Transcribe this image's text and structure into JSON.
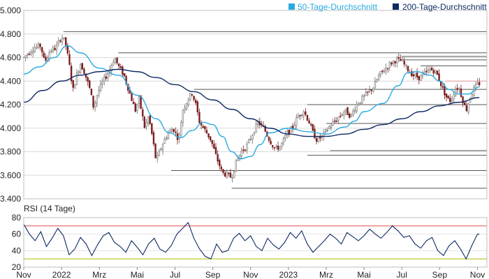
{
  "chart_data": [
    {
      "type": "candlestick",
      "legend": [
        {
          "name": "50-Tage-Durchschnitt",
          "color": "#29aae2"
        },
        {
          "name": "200-Tage-Durchschnitt",
          "color": "#0d2a63"
        }
      ],
      "ylim": [
        3400,
        5000
      ],
      "yticks": [
        "3.400",
        "3.600",
        "3.800",
        "4.000",
        "4.200",
        "4.400",
        "4.600",
        "4.800",
        "5.000"
      ],
      "ytick_values": [
        3400,
        3600,
        3800,
        4000,
        4200,
        4400,
        4600,
        4800,
        5000
      ],
      "xlim": [
        0,
        24.5
      ],
      "xticks": [
        {
          "label": "Nov",
          "month": 0
        },
        {
          "label": "2022",
          "month": 2
        },
        {
          "label": "Mrz",
          "month": 4
        },
        {
          "label": "Mai",
          "month": 6
        },
        {
          "label": "Jul",
          "month": 8
        },
        {
          "label": "Sep",
          "month": 10
        },
        {
          "label": "Nov",
          "month": 12
        },
        {
          "label": "2023",
          "month": 14
        },
        {
          "label": "Mrz",
          "month": 16
        },
        {
          "label": "Mai",
          "month": 18
        },
        {
          "label": "Jul",
          "month": 20
        },
        {
          "label": "Sep",
          "month": 22
        },
        {
          "label": "Nov",
          "month": 24
        }
      ],
      "price_path": [
        [
          0,
          4600
        ],
        [
          0.5,
          4680
        ],
        [
          0.9,
          4700
        ],
        [
          1.1,
          4560
        ],
        [
          1.4,
          4660
        ],
        [
          1.7,
          4680
        ],
        [
          2.0,
          4780
        ],
        [
          2.2,
          4730
        ],
        [
          2.4,
          4550
        ],
        [
          2.6,
          4320
        ],
        [
          2.8,
          4450
        ],
        [
          3.0,
          4550
        ],
        [
          3.2,
          4480
        ],
        [
          3.5,
          4330
        ],
        [
          3.7,
          4170
        ],
        [
          3.9,
          4300
        ],
        [
          4.2,
          4400
        ],
        [
          4.5,
          4480
        ],
        [
          4.8,
          4600
        ],
        [
          5.0,
          4530
        ],
        [
          5.3,
          4450
        ],
        [
          5.6,
          4300
        ],
        [
          5.9,
          4150
        ],
        [
          6.1,
          4250
        ],
        [
          6.4,
          4000
        ],
        [
          6.6,
          4100
        ],
        [
          6.8,
          3930
        ],
        [
          7.0,
          3720
        ],
        [
          7.3,
          3850
        ],
        [
          7.6,
          3950
        ],
        [
          7.9,
          4000
        ],
        [
          8.2,
          3900
        ],
        [
          8.4,
          4150
        ],
        [
          8.7,
          4250
        ],
        [
          8.9,
          4300
        ],
        [
          9.1,
          4200
        ],
        [
          9.3,
          4050
        ],
        [
          9.6,
          3980
        ],
        [
          9.9,
          3900
        ],
        [
          10.2,
          3750
        ],
        [
          10.5,
          3620
        ],
        [
          10.8,
          3600
        ],
        [
          11.0,
          3580
        ],
        [
          11.2,
          3700
        ],
        [
          11.5,
          3800
        ],
        [
          11.8,
          3850
        ],
        [
          12.1,
          3950
        ],
        [
          12.4,
          4050
        ],
        [
          12.7,
          4000
        ],
        [
          13.0,
          3900
        ],
        [
          13.3,
          3820
        ],
        [
          13.6,
          3850
        ],
        [
          13.9,
          3950
        ],
        [
          14.2,
          4000
        ],
        [
          14.5,
          4100
        ],
        [
          14.8,
          4150
        ],
        [
          15.1,
          4050
        ],
        [
          15.3,
          3960
        ],
        [
          15.5,
          3900
        ],
        [
          15.8,
          3930
        ],
        [
          16.1,
          4000
        ],
        [
          16.4,
          4050
        ],
        [
          16.7,
          4100
        ],
        [
          17.0,
          4150
        ],
        [
          17.3,
          4100
        ],
        [
          17.6,
          4200
        ],
        [
          17.9,
          4250
        ],
        [
          18.2,
          4300
        ],
        [
          18.5,
          4350
        ],
        [
          18.8,
          4450
        ],
        [
          19.1,
          4500
        ],
        [
          19.4,
          4550
        ],
        [
          19.7,
          4580
        ],
        [
          20.0,
          4570
        ],
        [
          20.3,
          4500
        ],
        [
          20.6,
          4450
        ],
        [
          20.9,
          4430
        ],
        [
          21.2,
          4460
        ],
        [
          21.5,
          4500
        ],
        [
          21.8,
          4480
        ],
        [
          22.0,
          4400
        ],
        [
          22.2,
          4320
        ],
        [
          22.4,
          4250
        ],
        [
          22.6,
          4230
        ],
        [
          22.8,
          4330
        ],
        [
          23.0,
          4350
        ],
        [
          23.2,
          4250
        ],
        [
          23.4,
          4150
        ],
        [
          23.6,
          4260
        ],
        [
          23.8,
          4330
        ],
        [
          24.0,
          4370
        ],
        [
          24.1,
          4380
        ]
      ],
      "series": [
        {
          "name": "50-Tage-Durchschnitt",
          "color": "#29aae2",
          "x": [
            0,
            0.8,
            1.6,
            2.3,
            3.0,
            4.0,
            5.0,
            6.0,
            7.0,
            7.7,
            8.3,
            8.9,
            9.5,
            10.0,
            10.5,
            11.0,
            11.5,
            12.0,
            12.5,
            13.0,
            14.0,
            15.0,
            16.0,
            17.0,
            17.5,
            18.0,
            19.0,
            19.8,
            20.3,
            20.8,
            21.5,
            22.0,
            22.5,
            23.0,
            23.5,
            24.1
          ],
          "values": [
            4460,
            4520,
            4600,
            4700,
            4640,
            4510,
            4450,
            4280,
            4080,
            3960,
            3920,
            3980,
            4050,
            4030,
            3930,
            3800,
            3740,
            3760,
            3860,
            3960,
            4000,
            3970,
            3950,
            4010,
            4060,
            4140,
            4210,
            4360,
            4470,
            4480,
            4450,
            4400,
            4330,
            4290,
            4290,
            4350
          ]
        },
        {
          "name": "200-Tage-Durchschnitt",
          "color": "#0d2a63",
          "x": [
            0,
            1.0,
            2.0,
            3.0,
            4.0,
            5.0,
            6.0,
            7.0,
            8.0,
            9.0,
            10.0,
            11.0,
            12.0,
            13.0,
            14.0,
            15.0,
            16.0,
            17.0,
            18.0,
            19.0,
            20.0,
            21.0,
            22.0,
            23.0,
            24.1
          ],
          "values": [
            4220,
            4320,
            4400,
            4450,
            4480,
            4500,
            4480,
            4430,
            4370,
            4310,
            4240,
            4160,
            4080,
            4000,
            3950,
            3930,
            3930,
            3950,
            3990,
            4030,
            4080,
            4140,
            4190,
            4220,
            4260
          ]
        }
      ],
      "support_resistance_levels": [
        4820,
        4640,
        4610,
        4580,
        4530,
        4400,
        4330,
        4200,
        4040,
        3810,
        3770,
        3640,
        3490
      ]
    },
    {
      "type": "line",
      "title": "RSI (14 Tage)",
      "ylim": [
        20,
        80
      ],
      "yticks": [
        "20",
        "40",
        "60",
        "80"
      ],
      "ytick_values": [
        20,
        40,
        60,
        80
      ],
      "reference_lines": [
        {
          "value": 70,
          "color": "#e06060"
        },
        {
          "value": 30,
          "color": "#b5c21f"
        }
      ],
      "series": [
        {
          "name": "RSI",
          "color": "#0d2a63",
          "x": [
            0,
            0.3,
            0.6,
            0.9,
            1.2,
            1.5,
            1.8,
            2.1,
            2.4,
            2.7,
            3.0,
            3.3,
            3.6,
            3.9,
            4.2,
            4.5,
            4.8,
            5.1,
            5.4,
            5.7,
            6.0,
            6.3,
            6.6,
            6.9,
            7.2,
            7.5,
            7.8,
            8.1,
            8.4,
            8.7,
            9.0,
            9.3,
            9.6,
            9.9,
            10.2,
            10.5,
            10.8,
            11.1,
            11.4,
            11.7,
            12.0,
            12.3,
            12.6,
            12.9,
            13.2,
            13.5,
            13.8,
            14.1,
            14.4,
            14.7,
            15.0,
            15.3,
            15.6,
            15.9,
            16.2,
            16.5,
            16.8,
            17.1,
            17.4,
            17.7,
            18.0,
            18.3,
            18.6,
            18.9,
            19.2,
            19.5,
            19.8,
            20.1,
            20.4,
            20.7,
            21.0,
            21.3,
            21.6,
            21.9,
            22.2,
            22.5,
            22.8,
            23.1,
            23.4,
            23.7,
            24.0,
            24.1
          ],
          "values": [
            72,
            60,
            52,
            63,
            45,
            55,
            67,
            58,
            35,
            42,
            56,
            48,
            34,
            47,
            58,
            62,
            50,
            45,
            38,
            52,
            44,
            35,
            48,
            55,
            42,
            38,
            46,
            60,
            67,
            74,
            55,
            42,
            33,
            30,
            48,
            38,
            40,
            55,
            61,
            52,
            58,
            45,
            40,
            55,
            47,
            42,
            50,
            62,
            55,
            64,
            48,
            38,
            45,
            52,
            60,
            55,
            48,
            62,
            57,
            52,
            58,
            66,
            60,
            55,
            62,
            70,
            64,
            56,
            58,
            48,
            43,
            52,
            56,
            40,
            34,
            46,
            52,
            42,
            30,
            46,
            60,
            60
          ]
        }
      ]
    }
  ]
}
